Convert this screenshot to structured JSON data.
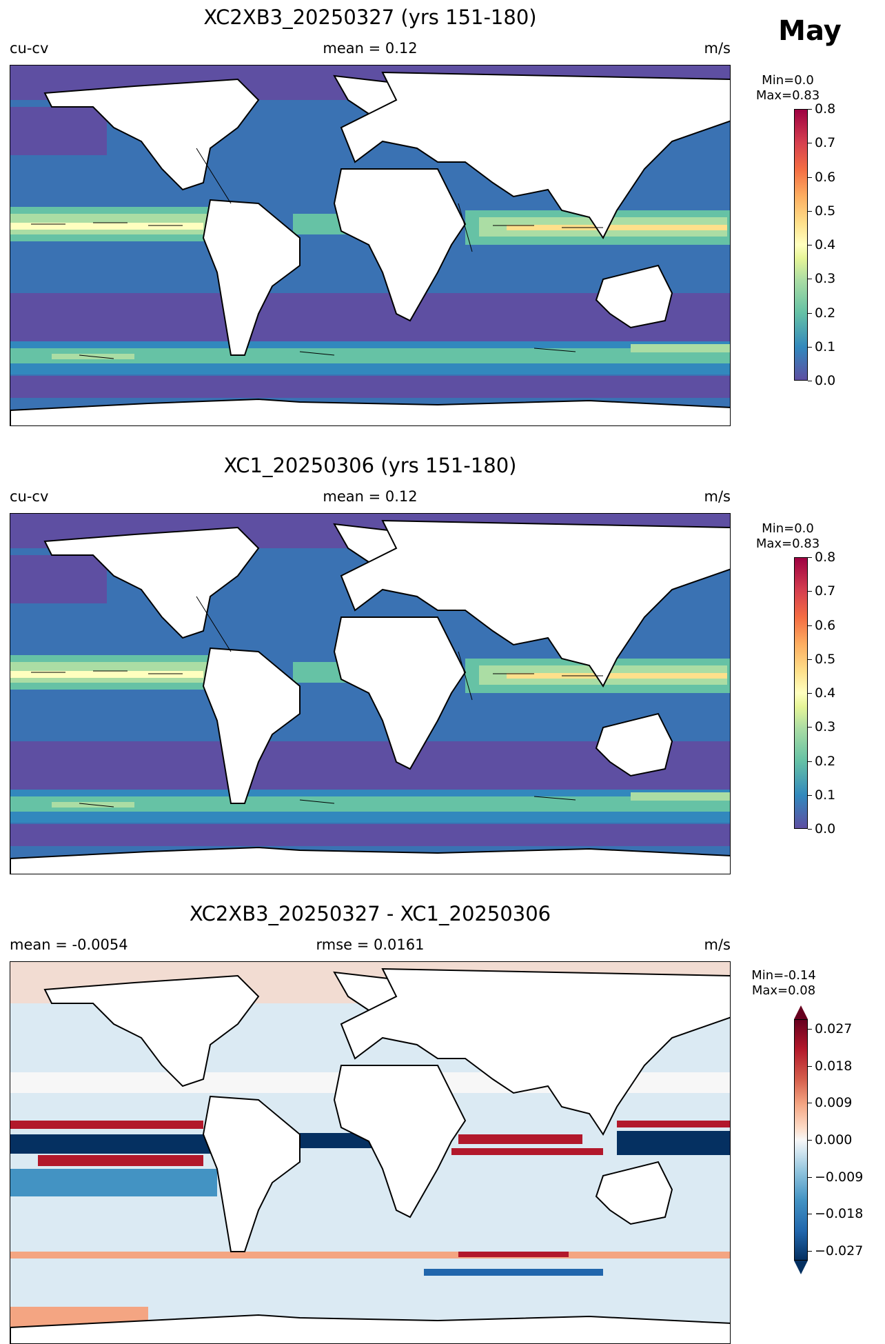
{
  "month": "May",
  "panels": [
    {
      "title": "XC2XB3_20250327 (yrs 151-180)",
      "left_label": "cu-cv",
      "center_label": "mean = 0.12",
      "right_label": "m/s",
      "min_label": "Min=0.0",
      "max_label": "Max=0.83",
      "colorbar_ticks": [
        "0.8",
        "0.7",
        "0.6",
        "0.5",
        "0.4",
        "0.3",
        "0.2",
        "0.1",
        "0.0"
      ]
    },
    {
      "title": "XC1_20250306 (yrs 151-180)",
      "left_label": "cu-cv",
      "center_label": "mean = 0.12",
      "right_label": "m/s",
      "min_label": "Min=0.0",
      "max_label": "Max=0.83",
      "colorbar_ticks": [
        "0.8",
        "0.7",
        "0.6",
        "0.5",
        "0.4",
        "0.3",
        "0.2",
        "0.1",
        "0.0"
      ]
    },
    {
      "title": "XC2XB3_20250327 - XC1_20250306",
      "left_label": "mean = -0.0054",
      "center_label": "rmse = 0.0161",
      "right_label": "m/s",
      "min_label": "Min=-0.14",
      "max_label": "Max=0.08",
      "colorbar_ticks": [
        "0.027",
        "0.018",
        "0.009",
        "0.000",
        "−0.009",
        "−0.018",
        "−0.027"
      ]
    }
  ],
  "colors": {
    "speed_scale": [
      "#5e4fa2",
      "#3288bd",
      "#66c2a5",
      "#abdda4",
      "#e6f598",
      "#ffffbf",
      "#fee08b",
      "#fdae61",
      "#f46d43",
      "#d53e4f",
      "#9e0142"
    ],
    "diff_scale": [
      "#053061",
      "#2166ac",
      "#4393c3",
      "#92c5de",
      "#d1e5f0",
      "#f7f7f7",
      "#fddbc7",
      "#f4a582",
      "#d6604d",
      "#b2182b",
      "#67001f"
    ],
    "land": "#ffffff",
    "coast": "#000000"
  }
}
